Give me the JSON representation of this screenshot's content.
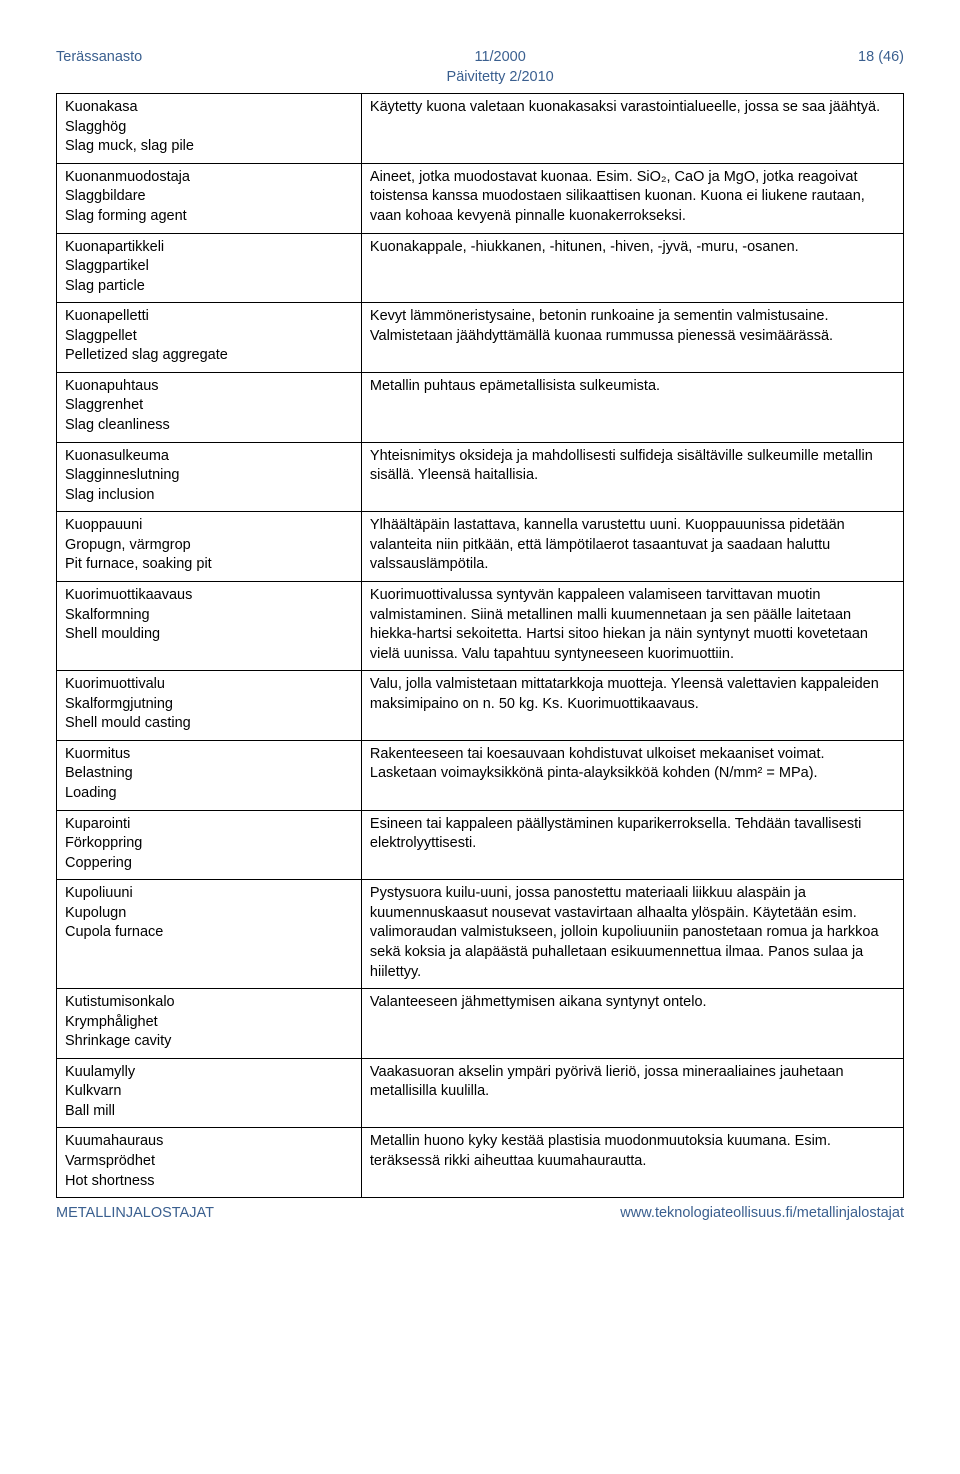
{
  "header": {
    "left": "Terässanasto",
    "center_line1": "11/2000",
    "center_line2": "Päivitetty 2/2010",
    "right": "18 (46)"
  },
  "rows": [
    {
      "terms": [
        "Kuonakasa",
        "Slagghög",
        "Slag muck, slag pile"
      ],
      "desc": "Käytetty kuona valetaan kuonakasaksi varastointi­alueelle, jossa se saa jäähtyä."
    },
    {
      "terms": [
        "Kuonanmuodostaja",
        "Slaggbildare",
        "Slag forming agent"
      ],
      "desc": "Aineet, jotka muodostavat kuonaa. Esim. SiO₂, CaO ja MgO, jotka reagoivat toistensa kanssa muodostaen silikaattisen kuonan. Kuona ei liukene rautaan, vaan kohoaa kevyenä pinnalle kuonaker­rokseksi."
    },
    {
      "terms": [
        "Kuonapartikkeli",
        "Slaggpartikel",
        "Slag particle"
      ],
      "desc": "Kuonakappale, -hiukkanen, -hitunen, -hiven, -jyvä, -muru, -osanen."
    },
    {
      "terms": [
        "Kuonapelletti",
        "Slaggpellet",
        "Pelletized slag aggregate"
      ],
      "desc": "Kevyt lämmöneristysaine, betonin runkoaine ja sementin valmistusaine. Valmistetaan jäähdyttä­mällä kuonaa rummussa pienessä vesimäärässä."
    },
    {
      "terms": [
        "Kuonapuhtaus",
        "Slaggrenhet",
        "Slag cleanliness"
      ],
      "desc": "Metallin puhtaus epämetallisista sulkeumista."
    },
    {
      "terms": [
        "Kuonasulkeuma",
        "Slagginneslutning",
        "Slag inclusion"
      ],
      "desc": "Yhteisnimitys oksideja ja mahdollisesti sulfideja sisältäville sulkeumille metallin sisällä. Yleensä haitallisia."
    },
    {
      "terms": [
        "Kuoppauuni",
        "Gropugn, värmgrop",
        "Pit furnace, soaking pit"
      ],
      "desc": "Ylhäältäpäin lastattava, kannella varustettu uuni. Kuoppauunissa pidetään valanteita niin pitkään, että lämpötilaerot tasaantuvat ja saadaan haluttu valssauslämpötila."
    },
    {
      "terms": [
        "Kuorimuottikaavaus",
        "Skalformning",
        "Shell moulding"
      ],
      "desc": "Kuorimuottivalussa syntyvän kappaleen valami­seen tarvittavan muotin valmistaminen. Siinä me­tallinen malli kuumennetaan ja sen päälle laitetaan hiekka-hartsi sekoitetta. Hartsi sitoo hiekan ja näin syntynyt muotti kovetetaan vielä uunissa. Valu tapahtuu syntyneeseen kuorimuottiin."
    },
    {
      "terms": [
        "Kuorimuottivalu",
        "Skalformgjutning",
        "Shell mould casting"
      ],
      "desc": "Valu, jolla valmistetaan mittatarkkoja muotteja. Yleensä valettavien kappaleiden maksimipaino on n. 50 kg. Ks. Kuorimuottikaavaus."
    },
    {
      "terms": [
        "Kuormitus",
        "Belastning",
        "Loading"
      ],
      "desc": "Rakenteeseen tai koesauvaan kohdistuvat ulkoiset mekaaniset voimat. Lasketaan voimayksikkönä pinta-alayksikköä kohden (N/mm² = MPa)."
    },
    {
      "terms": [
        "Kuparointi",
        "Förkoppring",
        "Coppering"
      ],
      "desc": "Esineen tai kappaleen päällystäminen kupariker­roksella. Tehdään tavallisesti elektrolyyttisesti."
    },
    {
      "terms": [
        "Kupoliuuni",
        "Kupolugn",
        "Cupola furnace"
      ],
      "desc": "Pystysuora kuilu-uuni, jossa panostettu materiaali liikkuu alaspäin ja kuumennuskaasut nousevat vastavirtaan alhaalta ylöspäin. Käytetään esim. valimoraudan valmistukseen, jolloin kupoliuuniin panostetaan romua ja harkkoa sekä koksia ja alapäästä puhalletaan esikuumennettua ilmaa. Panos sulaa ja hiilettyy."
    },
    {
      "terms": [
        "Kutistumisonkalo",
        "Krymphålighet",
        "Shrinkage cavity"
      ],
      "desc": "Valanteeseen jähmettymisen aikana syntynyt ontelo."
    },
    {
      "terms": [
        "Kuulamylly",
        "Kulkvarn",
        "Ball mill"
      ],
      "desc": "Vaakasuoran akselin ympäri pyörivä lieriö, jossa mineraaliaines jauhetaan metallisilla kuulilla."
    },
    {
      "terms": [
        "Kuumahauraus",
        "Varmsprödhet",
        "Hot shortness"
      ],
      "desc": "Metallin huono kyky kestää plastisia muodonmuu­toksia kuumana. Esim. teräksessä rikki aiheuttaa kuumahaurautta."
    }
  ],
  "footer": {
    "left": "METALLINJALOSTAJAT",
    "right": "www.teknologiateollisuus.fi/metallinjalostajat"
  }
}
